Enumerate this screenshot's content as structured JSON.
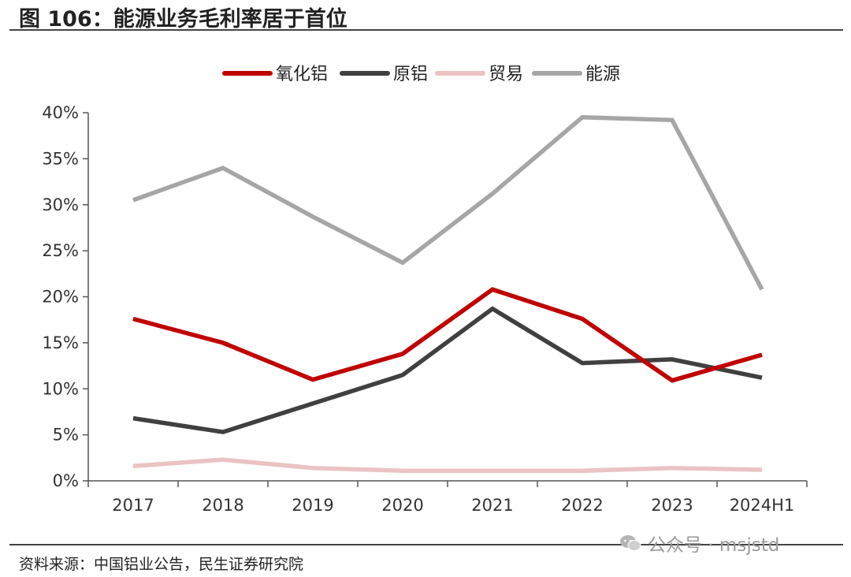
{
  "title": "图 106：能源业务毛利率居于首位",
  "source": "资料来源：中国铝业公告，民生证券研究院",
  "watermark": "公众号 · msjstd",
  "chart_data": {
    "type": "line",
    "title": "能源业务毛利率居于首位",
    "categories": [
      "2017",
      "2018",
      "2019",
      "2020",
      "2021",
      "2022",
      "2023",
      "2024H1"
    ],
    "yticks": [
      "0%",
      "5%",
      "10%",
      "15%",
      "20%",
      "25%",
      "30%",
      "35%",
      "40%"
    ],
    "ylim": [
      0,
      40
    ],
    "legend_position": "top-center",
    "series": [
      {
        "name": "氧化铝",
        "color": "#C00000",
        "values": [
          17.6,
          15.0,
          11.0,
          13.8,
          20.8,
          17.6,
          10.9,
          13.7
        ]
      },
      {
        "name": "原铝",
        "color": "#404040",
        "values": [
          6.8,
          5.3,
          8.4,
          11.5,
          18.7,
          12.8,
          13.2,
          11.2
        ]
      },
      {
        "name": "贸易",
        "color": "#EBC3C3",
        "values": [
          1.6,
          2.3,
          1.4,
          1.1,
          1.1,
          1.1,
          1.4,
          1.2
        ]
      },
      {
        "name": "能源",
        "color": "#A6A6A6",
        "values": [
          30.5,
          34.0,
          28.7,
          23.7,
          31.2,
          39.5,
          39.2,
          20.8
        ]
      }
    ]
  }
}
